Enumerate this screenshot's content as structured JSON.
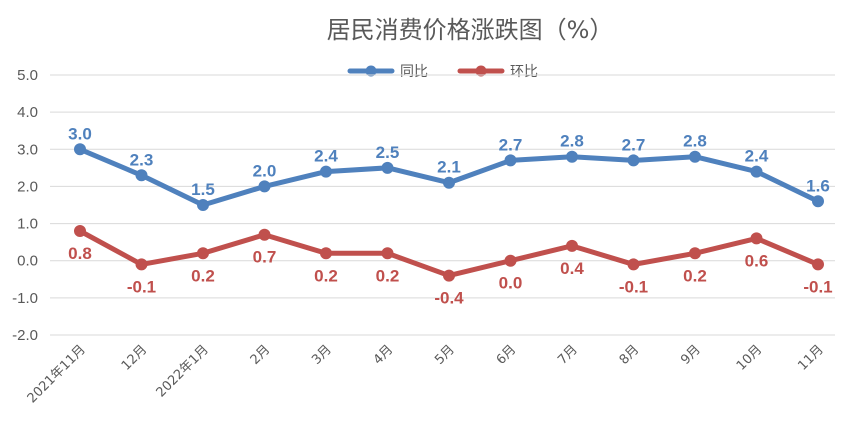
{
  "chart_data": {
    "type": "line",
    "title": "居民消费价格涨跌图（%）",
    "categories": [
      "2021年11月",
      "12月",
      "2022年1月",
      "2月",
      "3月",
      "4月",
      "5月",
      "6月",
      "7月",
      "8月",
      "9月",
      "10月",
      "11月"
    ],
    "series": [
      {
        "name": "同比",
        "color": "#4f81bd",
        "values": [
          3.0,
          2.3,
          1.5,
          2.0,
          2.4,
          2.5,
          2.1,
          2.7,
          2.8,
          2.7,
          2.8,
          2.4,
          1.6
        ],
        "labels": [
          "3.0",
          "2.3",
          "1.5",
          "2.0",
          "2.4",
          "2.5",
          "2.1",
          "2.7",
          "2.8",
          "2.7",
          "2.8",
          "2.4",
          "1.6"
        ],
        "label_position": "above"
      },
      {
        "name": "环比",
        "color": "#c0504d",
        "values": [
          0.8,
          -0.1,
          0.2,
          0.7,
          0.2,
          0.2,
          -0.4,
          0.0,
          0.4,
          -0.1,
          0.2,
          0.6,
          -0.1
        ],
        "labels": [
          "0.8",
          "-0.1",
          "0.2",
          "0.7",
          "0.2",
          "0.2",
          "-0.4",
          "0.0",
          "0.4",
          "-0.1",
          "0.2",
          "0.6",
          "-0.1"
        ],
        "label_position": "below"
      }
    ],
    "ylim": [
      -2.0,
      5.0
    ],
    "yticks": [
      -2.0,
      -1.0,
      0.0,
      1.0,
      2.0,
      3.0,
      4.0,
      5.0
    ],
    "ytick_labels": [
      "-2.0",
      "-1.0",
      "0.0",
      "1.0",
      "2.0",
      "3.0",
      "4.0",
      "5.0"
    ],
    "grid": true,
    "legend": "top-center"
  }
}
